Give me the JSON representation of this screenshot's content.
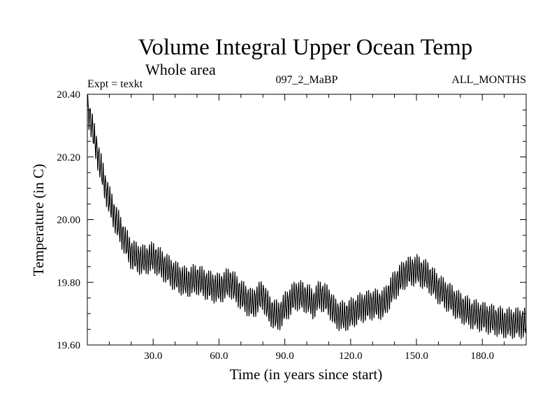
{
  "chart_data": {
    "type": "line",
    "title": "Volume Integral Upper Ocean Temp",
    "subtitle": "Whole area",
    "header_left": "Expt = texkt",
    "header_center": "097_2_MaBP",
    "header_right": "ALL_MONTHS",
    "xlabel": "Time (in years since start)",
    "ylabel": "Temperature (in C)",
    "xlim": [
      0,
      200
    ],
    "ylim": [
      19.6,
      20.4
    ],
    "x_ticks": [
      30,
      60,
      90,
      120,
      150,
      180
    ],
    "x_tick_labels": [
      "30.0",
      "60.0",
      "90.0",
      "120.0",
      "150.0",
      "180.0"
    ],
    "y_ticks": [
      19.6,
      19.8,
      20.0,
      20.2,
      20.4
    ],
    "y_tick_labels": [
      "19.60",
      "19.80",
      "20.00",
      "20.20",
      "20.40"
    ],
    "seasonal_amplitude_c": 0.04,
    "series": [
      {
        "name": "Volume integral upper ocean temperature (monthly)",
        "color": "#000000",
        "trend_x": [
          0,
          2,
          5,
          8,
          10,
          13,
          16,
          20,
          25,
          30,
          35,
          40,
          45,
          50,
          55,
          60,
          65,
          70,
          75,
          78,
          80,
          83,
          87,
          90,
          95,
          100,
          103,
          106,
          110,
          113,
          117,
          120,
          125,
          130,
          135,
          140,
          145,
          150,
          155,
          160,
          165,
          170,
          175,
          180,
          185,
          190,
          195,
          200
        ],
        "trend_y": [
          20.36,
          20.3,
          20.2,
          20.11,
          20.06,
          20.0,
          19.95,
          19.89,
          19.87,
          19.88,
          19.85,
          19.82,
          19.8,
          19.81,
          19.79,
          19.78,
          19.8,
          19.76,
          19.73,
          19.75,
          19.76,
          19.71,
          19.69,
          19.72,
          19.76,
          19.75,
          19.73,
          19.76,
          19.74,
          19.7,
          19.69,
          19.7,
          19.72,
          19.73,
          19.73,
          19.79,
          19.83,
          19.84,
          19.82,
          19.78,
          19.75,
          19.72,
          19.7,
          19.69,
          19.68,
          19.67,
          19.67,
          19.67
        ]
      }
    ]
  }
}
